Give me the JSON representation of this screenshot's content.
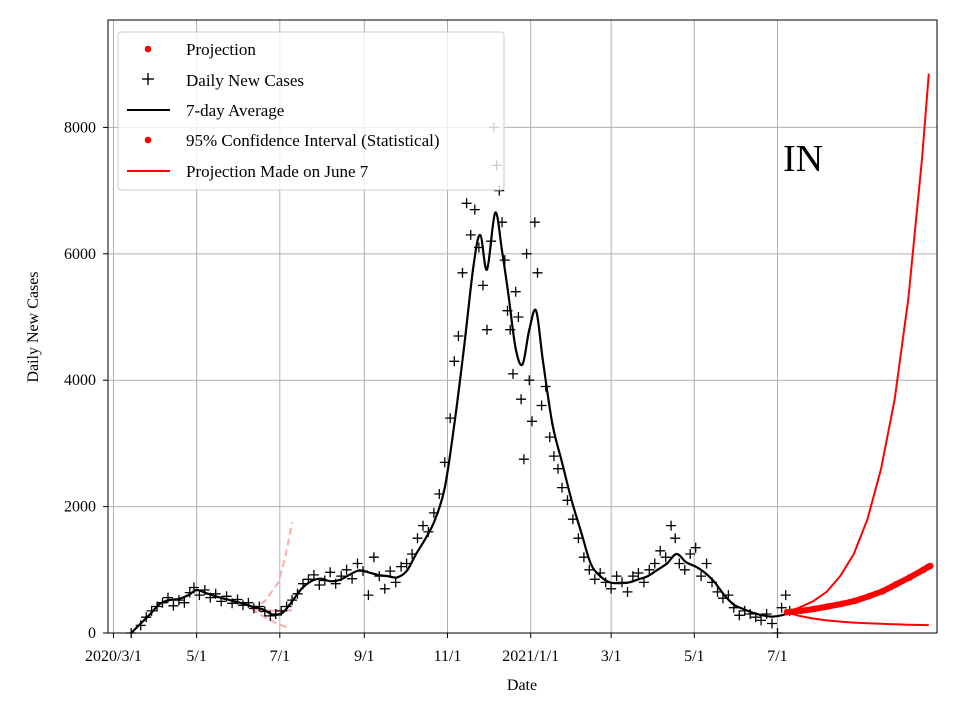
{
  "chart_data": {
    "type": "scatter",
    "title": "",
    "region_label": "IN",
    "xlabel": "Date",
    "ylabel": "Daily New Cases",
    "x_axis_type": "date",
    "xlim": [
      "2020-02-26",
      "2021-10-26"
    ],
    "ylim": [
      0,
      9700
    ],
    "grid": true,
    "legend_position": "top-left",
    "x_ticks": [
      {
        "date": "2020-03-01",
        "label": "2020/3/1"
      },
      {
        "date": "2020-05-01",
        "label": "5/1"
      },
      {
        "date": "2020-07-01",
        "label": "7/1"
      },
      {
        "date": "2020-09-01",
        "label": "9/1"
      },
      {
        "date": "2020-11-01",
        "label": "11/1"
      },
      {
        "date": "2021-01-01",
        "label": "2021/1/1"
      },
      {
        "date": "2021-03-01",
        "label": "3/1"
      },
      {
        "date": "2021-05-01",
        "label": "5/1"
      },
      {
        "date": "2021-07-01",
        "label": "7/1"
      }
    ],
    "y_ticks": [
      {
        "value": 0,
        "label": "0"
      },
      {
        "value": 2000,
        "label": "2000"
      },
      {
        "value": 4000,
        "label": "4000"
      },
      {
        "value": 6000,
        "label": "6000"
      },
      {
        "value": 8000,
        "label": "8000"
      }
    ],
    "legend": [
      {
        "label": "Projection",
        "marker": "dot",
        "color": "#ff0000"
      },
      {
        "label": "Daily New Cases",
        "marker": "plus",
        "color": "#000000"
      },
      {
        "label": "7-day Average",
        "marker": "line",
        "color": "#000000"
      },
      {
        "label": "95% Confidence Interval (Statistical)",
        "marker": "dot",
        "color": "#ff0000"
      },
      {
        "label": "Projection Made on June 7",
        "marker": "line",
        "color": "#ff0000"
      }
    ],
    "seven_day_average": [
      [
        "2020-03-14",
        0
      ],
      [
        "2020-03-21",
        150
      ],
      [
        "2020-03-28",
        300
      ],
      [
        "2020-04-04",
        460
      ],
      [
        "2020-04-11",
        520
      ],
      [
        "2020-04-18",
        540
      ],
      [
        "2020-04-25",
        600
      ],
      [
        "2020-05-01",
        680
      ],
      [
        "2020-05-08",
        630
      ],
      [
        "2020-05-15",
        580
      ],
      [
        "2020-05-22",
        540
      ],
      [
        "2020-05-29",
        500
      ],
      [
        "2020-06-05",
        460
      ],
      [
        "2020-06-12",
        410
      ],
      [
        "2020-06-19",
        370
      ],
      [
        "2020-06-26",
        290
      ],
      [
        "2020-07-03",
        320
      ],
      [
        "2020-07-10",
        500
      ],
      [
        "2020-07-17",
        700
      ],
      [
        "2020-07-24",
        820
      ],
      [
        "2020-07-31",
        860
      ],
      [
        "2020-08-07",
        820
      ],
      [
        "2020-08-14",
        840
      ],
      [
        "2020-08-21",
        920
      ],
      [
        "2020-08-28",
        990
      ],
      [
        "2020-09-04",
        960
      ],
      [
        "2020-09-11",
        920
      ],
      [
        "2020-09-18",
        900
      ],
      [
        "2020-09-25",
        880
      ],
      [
        "2020-10-02",
        980
      ],
      [
        "2020-10-09",
        1250
      ],
      [
        "2020-10-16",
        1500
      ],
      [
        "2020-10-23",
        1800
      ],
      [
        "2020-10-30",
        2300
      ],
      [
        "2020-11-06",
        3300
      ],
      [
        "2020-11-13",
        4500
      ],
      [
        "2020-11-20",
        5800
      ],
      [
        "2020-11-25",
        6300
      ],
      [
        "2020-11-30",
        5750
      ],
      [
        "2020-12-06",
        6650
      ],
      [
        "2020-12-11",
        6050
      ],
      [
        "2020-12-16",
        5300
      ],
      [
        "2020-12-21",
        4500
      ],
      [
        "2020-12-26",
        4250
      ],
      [
        "2020-12-31",
        4800
      ],
      [
        "2021-01-05",
        5100
      ],
      [
        "2021-01-10",
        4300
      ],
      [
        "2021-01-17",
        3300
      ],
      [
        "2021-01-24",
        2700
      ],
      [
        "2021-01-31",
        2100
      ],
      [
        "2021-02-07",
        1600
      ],
      [
        "2021-02-14",
        1100
      ],
      [
        "2021-02-21",
        900
      ],
      [
        "2021-02-28",
        800
      ],
      [
        "2021-03-07",
        790
      ],
      [
        "2021-03-14",
        800
      ],
      [
        "2021-03-21",
        850
      ],
      [
        "2021-03-28",
        900
      ],
      [
        "2021-04-04",
        1000
      ],
      [
        "2021-04-11",
        1100
      ],
      [
        "2021-04-18",
        1250
      ],
      [
        "2021-04-25",
        1120
      ],
      [
        "2021-05-02",
        1050
      ],
      [
        "2021-05-09",
        950
      ],
      [
        "2021-05-16",
        800
      ],
      [
        "2021-05-23",
        600
      ],
      [
        "2021-05-30",
        450
      ],
      [
        "2021-06-06",
        380
      ],
      [
        "2021-06-13",
        320
      ],
      [
        "2021-06-20",
        280
      ],
      [
        "2021-06-27",
        260
      ],
      [
        "2021-07-04",
        280
      ],
      [
        "2021-07-07",
        300
      ]
    ],
    "daily_new_cases": [
      [
        "2020-03-14",
        0
      ],
      [
        "2020-03-21",
        120
      ],
      [
        "2020-03-25",
        250
      ],
      [
        "2020-03-29",
        350
      ],
      [
        "2020-04-02",
        420
      ],
      [
        "2020-04-06",
        480
      ],
      [
        "2020-04-10",
        560
      ],
      [
        "2020-04-14",
        430
      ],
      [
        "2020-04-18",
        520
      ],
      [
        "2020-04-22",
        480
      ],
      [
        "2020-04-26",
        640
      ],
      [
        "2020-04-29",
        720
      ],
      [
        "2020-05-03",
        600
      ],
      [
        "2020-05-07",
        680
      ],
      [
        "2020-05-11",
        560
      ],
      [
        "2020-05-15",
        620
      ],
      [
        "2020-05-19",
        500
      ],
      [
        "2020-05-23",
        580
      ],
      [
        "2020-05-27",
        470
      ],
      [
        "2020-05-31",
        530
      ],
      [
        "2020-06-04",
        440
      ],
      [
        "2020-06-08",
        480
      ],
      [
        "2020-06-12",
        390
      ],
      [
        "2020-06-16",
        420
      ],
      [
        "2020-06-20",
        340
      ],
      [
        "2020-06-24",
        270
      ],
      [
        "2020-06-28",
        300
      ],
      [
        "2020-07-02",
        350
      ],
      [
        "2020-07-06",
        420
      ],
      [
        "2020-07-10",
        520
      ],
      [
        "2020-07-14",
        620
      ],
      [
        "2020-07-18",
        780
      ],
      [
        "2020-07-22",
        850
      ],
      [
        "2020-07-26",
        920
      ],
      [
        "2020-07-30",
        760
      ],
      [
        "2020-08-03",
        830
      ],
      [
        "2020-08-07",
        960
      ],
      [
        "2020-08-11",
        780
      ],
      [
        "2020-08-15",
        900
      ],
      [
        "2020-08-19",
        1000
      ],
      [
        "2020-08-23",
        860
      ],
      [
        "2020-08-27",
        1100
      ],
      [
        "2020-08-31",
        980
      ],
      [
        "2020-09-04",
        600
      ],
      [
        "2020-09-08",
        1200
      ],
      [
        "2020-09-12",
        900
      ],
      [
        "2020-09-16",
        700
      ],
      [
        "2020-09-20",
        980
      ],
      [
        "2020-09-24",
        800
      ],
      [
        "2020-09-28",
        1050
      ],
      [
        "2020-10-02",
        1100
      ],
      [
        "2020-10-06",
        1250
      ],
      [
        "2020-10-10",
        1500
      ],
      [
        "2020-10-14",
        1700
      ],
      [
        "2020-10-18",
        1600
      ],
      [
        "2020-10-22",
        1900
      ],
      [
        "2020-10-26",
        2200
      ],
      [
        "2020-10-30",
        2700
      ],
      [
        "2020-11-03",
        3400
      ],
      [
        "2020-11-06",
        4300
      ],
      [
        "2020-11-09",
        4700
      ],
      [
        "2020-11-12",
        5700
      ],
      [
        "2020-11-15",
        6800
      ],
      [
        "2020-11-18",
        6300
      ],
      [
        "2020-11-21",
        6700
      ],
      [
        "2020-11-24",
        6100
      ],
      [
        "2020-11-27",
        5500
      ],
      [
        "2020-11-30",
        4800
      ],
      [
        "2020-12-03",
        6200
      ],
      [
        "2020-12-05",
        8000
      ],
      [
        "2020-12-07",
        7400
      ],
      [
        "2020-12-09",
        7000
      ],
      [
        "2020-12-11",
        6500
      ],
      [
        "2020-12-13",
        5900
      ],
      [
        "2020-12-15",
        5100
      ],
      [
        "2020-12-17",
        4800
      ],
      [
        "2020-12-19",
        4100
      ],
      [
        "2020-12-21",
        5400
      ],
      [
        "2020-12-23",
        5000
      ],
      [
        "2020-12-25",
        3700
      ],
      [
        "2020-12-27",
        2750
      ],
      [
        "2020-12-29",
        6000
      ],
      [
        "2020-12-31",
        4000
      ],
      [
        "2021-01-02",
        3350
      ],
      [
        "2021-01-04",
        6500
      ],
      [
        "2021-01-06",
        5700
      ],
      [
        "2021-01-09",
        3600
      ],
      [
        "2021-01-12",
        3900
      ],
      [
        "2021-01-15",
        3100
      ],
      [
        "2021-01-18",
        2800
      ],
      [
        "2021-01-21",
        2600
      ],
      [
        "2021-01-24",
        2300
      ],
      [
        "2021-01-28",
        2100
      ],
      [
        "2021-02-01",
        1800
      ],
      [
        "2021-02-05",
        1500
      ],
      [
        "2021-02-09",
        1200
      ],
      [
        "2021-02-13",
        1000
      ],
      [
        "2021-02-17",
        850
      ],
      [
        "2021-02-21",
        950
      ],
      [
        "2021-02-25",
        800
      ],
      [
        "2021-03-01",
        700
      ],
      [
        "2021-03-05",
        900
      ],
      [
        "2021-03-09",
        800
      ],
      [
        "2021-03-13",
        650
      ],
      [
        "2021-03-17",
        900
      ],
      [
        "2021-03-21",
        950
      ],
      [
        "2021-03-25",
        800
      ],
      [
        "2021-03-29",
        1000
      ],
      [
        "2021-04-02",
        1100
      ],
      [
        "2021-04-06",
        1300
      ],
      [
        "2021-04-10",
        1200
      ],
      [
        "2021-04-14",
        1700
      ],
      [
        "2021-04-17",
        1500
      ],
      [
        "2021-04-20",
        1100
      ],
      [
        "2021-04-24",
        1000
      ],
      [
        "2021-04-28",
        1250
      ],
      [
        "2021-05-02",
        1350
      ],
      [
        "2021-05-06",
        900
      ],
      [
        "2021-05-10",
        1100
      ],
      [
        "2021-05-14",
        800
      ],
      [
        "2021-05-18",
        650
      ],
      [
        "2021-05-22",
        550
      ],
      [
        "2021-05-26",
        600
      ],
      [
        "2021-05-30",
        400
      ],
      [
        "2021-06-03",
        280
      ],
      [
        "2021-06-07",
        350
      ],
      [
        "2021-06-11",
        300
      ],
      [
        "2021-06-15",
        250
      ],
      [
        "2021-06-19",
        200
      ],
      [
        "2021-06-23",
        300
      ],
      [
        "2021-06-27",
        150
      ],
      [
        "2021-07-01",
        0
      ],
      [
        "2021-07-04",
        400
      ],
      [
        "2021-07-07",
        600
      ],
      [
        "2021-07-10",
        350
      ]
    ],
    "projection": [
      [
        "2021-07-08",
        330
      ],
      [
        "2021-07-18",
        350
      ],
      [
        "2021-07-28",
        380
      ],
      [
        "2021-08-07",
        420
      ],
      [
        "2021-08-17",
        460
      ],
      [
        "2021-08-27",
        510
      ],
      [
        "2021-09-06",
        580
      ],
      [
        "2021-09-16",
        660
      ],
      [
        "2021-09-26",
        770
      ],
      [
        "2021-10-06",
        880
      ],
      [
        "2021-10-16",
        1000
      ],
      [
        "2021-10-19",
        1040
      ],
      [
        "2021-10-21",
        1060
      ]
    ],
    "confidence_interval_upper": [
      [
        "2021-07-07",
        330
      ],
      [
        "2021-07-17",
        400
      ],
      [
        "2021-07-27",
        500
      ],
      [
        "2021-08-06",
        650
      ],
      [
        "2021-08-16",
        900
      ],
      [
        "2021-08-26",
        1250
      ],
      [
        "2021-09-05",
        1800
      ],
      [
        "2021-09-15",
        2600
      ],
      [
        "2021-09-25",
        3700
      ],
      [
        "2021-10-05",
        5300
      ],
      [
        "2021-10-15",
        7500
      ],
      [
        "2021-10-20",
        8850
      ]
    ],
    "confidence_interval_lower": [
      [
        "2021-07-07",
        330
      ],
      [
        "2021-07-17",
        270
      ],
      [
        "2021-07-27",
        230
      ],
      [
        "2021-08-06",
        200
      ],
      [
        "2021-08-16",
        180
      ],
      [
        "2021-08-26",
        165
      ],
      [
        "2021-09-05",
        155
      ],
      [
        "2021-09-15",
        145
      ],
      [
        "2021-09-25",
        138
      ],
      [
        "2021-10-05",
        132
      ],
      [
        "2021-10-20",
        125
      ]
    ],
    "earlier_projection_band": {
      "center": [
        [
          "2020-06-10",
          380
        ],
        [
          "2020-06-20",
          360
        ],
        [
          "2020-06-30",
          350
        ],
        [
          "2020-07-10",
          360
        ]
      ],
      "upper": [
        [
          "2020-06-10",
          380
        ],
        [
          "2020-06-20",
          500
        ],
        [
          "2020-06-30",
          800
        ],
        [
          "2020-07-05",
          1200
        ],
        [
          "2020-07-10",
          1750
        ]
      ],
      "lower": [
        [
          "2020-06-10",
          380
        ],
        [
          "2020-06-20",
          250
        ],
        [
          "2020-06-30",
          140
        ],
        [
          "2020-07-05",
          100
        ],
        [
          "2020-07-08",
          60
        ]
      ],
      "color": "#ffaaaa"
    }
  }
}
